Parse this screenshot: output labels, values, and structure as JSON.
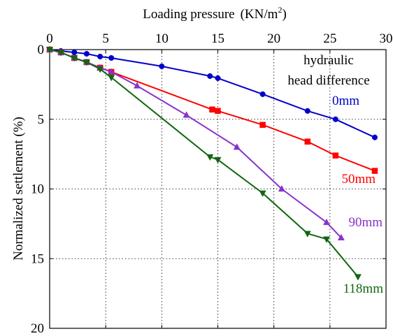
{
  "chart_data": {
    "type": "line",
    "title": "",
    "xlabel": "Loading pressure",
    "xlabel_unit_prefix": "(KN/m",
    "xlabel_unit_sup": "2",
    "xlabel_unit_suffix": ")",
    "ylabel": "Normalized settlement  (%)",
    "x_axis_position": "top",
    "y_axis_inverted": true,
    "xlim": [
      0,
      30
    ],
    "ylim": [
      0,
      20
    ],
    "xticks": [
      0,
      5,
      10,
      15,
      20,
      25,
      30
    ],
    "yticks": [
      0,
      5,
      10,
      15,
      20
    ],
    "grid": true,
    "legend": "none",
    "annotations": [
      {
        "text": "hydraulic",
        "color": "#000000"
      },
      {
        "text": "head difference",
        "color": "#000000"
      }
    ],
    "series": [
      {
        "name": "0mm",
        "color": "#0000cc",
        "marker": "circle",
        "x": [
          0,
          1,
          2.2,
          3.3,
          4.5,
          5.5,
          10,
          14.3,
          15,
          19,
          23,
          25.5,
          29
        ],
        "y": [
          0,
          0.1,
          0.2,
          0.3,
          0.5,
          0.6,
          1.2,
          1.9,
          2.05,
          3.2,
          4.4,
          5.0,
          6.3
        ]
      },
      {
        "name": "50mm",
        "color": "#ff0000",
        "marker": "square",
        "x": [
          0,
          1,
          2.2,
          3.3,
          4.5,
          5.5,
          14.5,
          15,
          19,
          23,
          25.5,
          29
        ],
        "y": [
          0,
          0.2,
          0.6,
          0.9,
          1.3,
          1.6,
          4.3,
          4.4,
          5.4,
          6.6,
          7.6,
          8.7
        ]
      },
      {
        "name": "90mm",
        "color": "#8833cc",
        "marker": "triangle-up",
        "x": [
          0,
          1,
          2.2,
          3.3,
          4.5,
          5.5,
          7.8,
          12.2,
          16.7,
          20.7,
          24.7,
          26
        ],
        "y": [
          0,
          0.2,
          0.6,
          0.9,
          1.3,
          1.6,
          2.6,
          4.7,
          7.0,
          10.0,
          12.4,
          13.5
        ]
      },
      {
        "name": "118mm",
        "color": "#116611",
        "marker": "triangle-down",
        "x": [
          0,
          1,
          2.2,
          3.3,
          4.5,
          5.5,
          14.3,
          15,
          19,
          23,
          24.7,
          27.5
        ],
        "y": [
          0,
          0.2,
          0.6,
          0.9,
          1.4,
          2.0,
          7.7,
          7.9,
          10.3,
          13.2,
          13.6,
          16.3
        ]
      }
    ]
  }
}
